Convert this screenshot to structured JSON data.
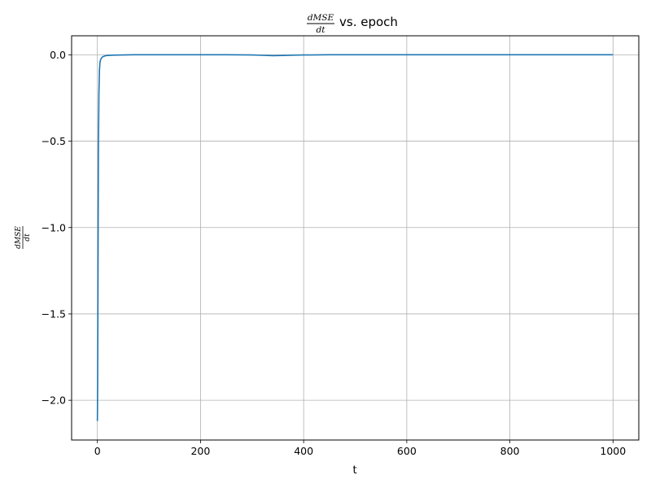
{
  "chart_data": {
    "type": "line",
    "title": {
      "numerator": "dMSE",
      "denominator": "dt",
      "suffix": "vs. epoch"
    },
    "xlabel": "t",
    "ylabel": {
      "numerator": "dMSE",
      "denominator": "dt"
    },
    "xlim": [
      -50,
      1050
    ],
    "ylim": [
      -2.23,
      0.11
    ],
    "xticks": [
      0,
      200,
      400,
      600,
      800,
      1000
    ],
    "xtick_labels": [
      "0",
      "200",
      "400",
      "600",
      "800",
      "1000"
    ],
    "yticks": [
      0.0,
      -0.5,
      -1.0,
      -1.5,
      -2.0
    ],
    "ytick_labels": [
      "0.0",
      "−0.5",
      "−1.0",
      "−1.5",
      "−2.0"
    ],
    "grid": true,
    "series": [
      {
        "color": "#1f77b4",
        "x": [
          0,
          0.5,
          1,
          1.5,
          2,
          3,
          4,
          5,
          6,
          8,
          10,
          15,
          20,
          30,
          50,
          70,
          100,
          150,
          200,
          250,
          300,
          320,
          340,
          360,
          380,
          400,
          450,
          500,
          600,
          700,
          800,
          900,
          1000
        ],
        "y": [
          -2.12,
          -1.9,
          -1.5,
          -1.0,
          -0.55,
          -0.22,
          -0.09,
          -0.045,
          -0.03,
          -0.018,
          -0.012,
          -0.006,
          -0.004,
          -0.002,
          -0.001,
          0.0,
          0.0,
          0.0,
          0.0,
          0.0,
          -0.001,
          -0.003,
          -0.005,
          -0.004,
          -0.002,
          -0.001,
          0.0,
          0.0,
          0.0,
          0.0,
          0.0,
          0.0,
          0.0
        ]
      }
    ]
  }
}
